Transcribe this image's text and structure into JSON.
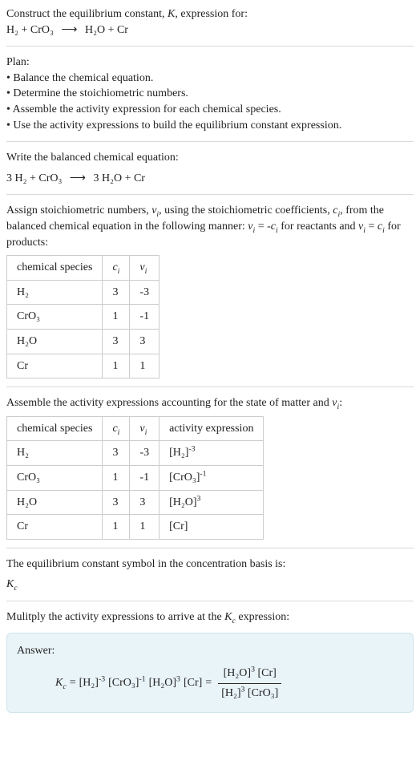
{
  "intro1": "Construct the equilibrium constant, K, expression for:",
  "eq_unbal_left": "H₂ + CrO₃",
  "eq_unbal_right": "H₂O + Cr",
  "arrow_glyph": "⟶",
  "plan_title": "Plan:",
  "plan_items": [
    "• Balance the chemical equation.",
    "• Determine the stoichiometric numbers.",
    "• Assemble the activity expression for each chemical species.",
    "• Use the activity expressions to build the equilibrium constant expression."
  ],
  "write_balanced": "Write the balanced chemical equation:",
  "eq_bal_left": "3 H₂ + CrO₃",
  "eq_bal_right": "3 H₂O + Cr",
  "assign_text1": "Assign stoichiometric numbers, νᵢ, using the stoichiometric coefficients, cᵢ, from the balanced chemical equation in the following manner: νᵢ = -cᵢ for reactants and νᵢ = cᵢ for products:",
  "table1": {
    "header": [
      "chemical species",
      "cᵢ",
      "νᵢ"
    ],
    "rows": [
      [
        "H₂",
        "3",
        "-3"
      ],
      [
        "CrO₃",
        "1",
        "-1"
      ],
      [
        "H₂O",
        "3",
        "3"
      ],
      [
        "Cr",
        "1",
        "1"
      ]
    ]
  },
  "assemble_text": "Assemble the activity expressions accounting for the state of matter and νᵢ:",
  "table2": {
    "header": [
      "chemical species",
      "cᵢ",
      "νᵢ",
      "activity expression"
    ],
    "rows": [
      {
        "c": [
          "H₂",
          "3",
          "-3"
        ],
        "act": [
          "[H₂]",
          "-3"
        ]
      },
      {
        "c": [
          "CrO₃",
          "1",
          "-1"
        ],
        "act": [
          "[CrO₃]",
          "-1"
        ]
      },
      {
        "c": [
          "H₂O",
          "3",
          "3"
        ],
        "act": [
          "[H₂O]",
          "3"
        ]
      },
      {
        "c": [
          "Cr",
          "1",
          "1"
        ],
        "act": [
          "[Cr]",
          ""
        ]
      }
    ]
  },
  "eqconst_text1": "The equilibrium constant symbol in the concentration basis is:",
  "kc_label": "K",
  "kc_sub": "c",
  "multiply_text": "Mulitply the activity expressions to arrive at the K_c expression:",
  "answer_label": "Answer:",
  "final": {
    "lhs": "K",
    "sub": "c",
    "t1": "[H₂]",
    "e1": "-3",
    "t2": "[CrO₃]",
    "e2": "-1",
    "t3": "[H₂O]",
    "e3": "3",
    "t4": "[Cr]",
    "num1": "[H₂O]",
    "ne1": "3",
    "num2": "[Cr]",
    "den1": "[H₂]",
    "de1": "3",
    "den2": "[CrO₃]"
  }
}
